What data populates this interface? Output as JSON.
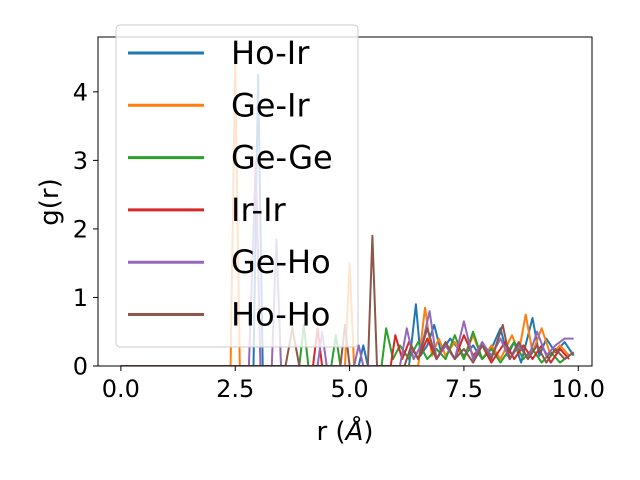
{
  "chart_data": {
    "type": "line",
    "title": "",
    "xlabel": "r (",
    "xlabel_unit": "Å",
    "xlabel_close": ")",
    "ylabel": "g(r)",
    "xlim": [
      -0.5,
      10.3
    ],
    "ylim": [
      0,
      4.8
    ],
    "xticks": [
      0.0,
      2.5,
      5.0,
      7.5,
      10.0
    ],
    "xtick_labels": [
      "0.0",
      "2.5",
      "5.0",
      "7.5",
      "10.0"
    ],
    "yticks": [
      0,
      1,
      2,
      3,
      4
    ],
    "ytick_labels": [
      "0",
      "1",
      "2",
      "3",
      "4"
    ],
    "grid": false,
    "legend_position": "top-left",
    "series": [
      {
        "name": "Ho-Ir",
        "color": "#1f77b4",
        "points": [
          [
            0,
            0
          ],
          [
            2.9,
            0
          ],
          [
            3.0,
            4.25
          ],
          [
            3.1,
            0
          ],
          [
            5.2,
            0
          ],
          [
            5.3,
            0.3
          ],
          [
            5.4,
            0
          ],
          [
            6.3,
            0
          ],
          [
            6.45,
            0.9
          ],
          [
            6.55,
            0.15
          ],
          [
            6.7,
            0.3
          ],
          [
            6.85,
            0.6
          ],
          [
            7.0,
            0.2
          ],
          [
            7.2,
            0.4
          ],
          [
            7.5,
            0.15
          ],
          [
            7.7,
            0.3
          ],
          [
            7.9,
            0.1
          ],
          [
            8.1,
            0.25
          ],
          [
            8.3,
            0.55
          ],
          [
            8.45,
            0.15
          ],
          [
            8.6,
            0.35
          ],
          [
            8.75,
            0.05
          ],
          [
            9.0,
            0.7
          ],
          [
            9.15,
            0.15
          ],
          [
            9.3,
            0.4
          ],
          [
            9.5,
            0.2
          ],
          [
            9.7,
            0.35
          ],
          [
            9.9,
            0.15
          ]
        ]
      },
      {
        "name": "Ge-Ir",
        "color": "#ff7f0e",
        "points": [
          [
            0,
            0
          ],
          [
            2.4,
            0
          ],
          [
            2.5,
            4.4
          ],
          [
            2.6,
            0
          ],
          [
            4.9,
            0
          ],
          [
            5.0,
            1.5
          ],
          [
            5.1,
            0
          ],
          [
            6.5,
            0
          ],
          [
            6.65,
            0.85
          ],
          [
            6.8,
            0.15
          ],
          [
            6.95,
            0.4
          ],
          [
            7.1,
            0.15
          ],
          [
            7.3,
            0.35
          ],
          [
            7.5,
            0.1
          ],
          [
            7.7,
            0.45
          ],
          [
            7.9,
            0.1
          ],
          [
            8.1,
            0.3
          ],
          [
            8.3,
            0.1
          ],
          [
            8.55,
            0.45
          ],
          [
            8.7,
            0.2
          ],
          [
            8.85,
            0.75
          ],
          [
            9.0,
            0.2
          ],
          [
            9.2,
            0.55
          ],
          [
            9.4,
            0.15
          ],
          [
            9.6,
            0.3
          ],
          [
            9.8,
            0.15
          ],
          [
            9.9,
            0.2
          ]
        ]
      },
      {
        "name": "Ge-Ge",
        "color": "#2ca02c",
        "points": [
          [
            0,
            0
          ],
          [
            3.9,
            0
          ],
          [
            4.0,
            0.6
          ],
          [
            4.1,
            0
          ],
          [
            4.6,
            0
          ],
          [
            4.7,
            0.45
          ],
          [
            4.8,
            0
          ],
          [
            5.7,
            0
          ],
          [
            5.8,
            0.55
          ],
          [
            5.95,
            0.1
          ],
          [
            6.1,
            0.3
          ],
          [
            6.3,
            0.1
          ],
          [
            6.5,
            0.35
          ],
          [
            6.7,
            0.1
          ],
          [
            6.9,
            0.25
          ],
          [
            7.1,
            0.1
          ],
          [
            7.3,
            0.45
          ],
          [
            7.5,
            0.1
          ],
          [
            7.7,
            0.5
          ],
          [
            7.9,
            0.1
          ],
          [
            8.1,
            0.25
          ],
          [
            8.3,
            0.05
          ],
          [
            8.6,
            0.35
          ],
          [
            8.8,
            0.1
          ],
          [
            9.0,
            0.25
          ],
          [
            9.2,
            0.05
          ],
          [
            9.4,
            0.2
          ],
          [
            9.6,
            0.05
          ],
          [
            9.8,
            0.15
          ]
        ]
      },
      {
        "name": "Ir-Ir",
        "color": "#d62728",
        "points": [
          [
            0,
            0
          ],
          [
            4.2,
            0
          ],
          [
            4.3,
            0.55
          ],
          [
            4.4,
            0
          ],
          [
            5.9,
            0
          ],
          [
            6.0,
            0.45
          ],
          [
            6.15,
            0.1
          ],
          [
            6.3,
            0.35
          ],
          [
            6.5,
            0.1
          ],
          [
            6.7,
            0.4
          ],
          [
            6.9,
            0.1
          ],
          [
            7.1,
            0.3
          ],
          [
            7.3,
            0.1
          ],
          [
            7.5,
            0.45
          ],
          [
            7.7,
            0.15
          ],
          [
            7.9,
            0.3
          ],
          [
            8.1,
            0.05
          ],
          [
            8.4,
            0.35
          ],
          [
            8.6,
            0.1
          ],
          [
            8.8,
            0.3
          ],
          [
            9.0,
            0.1
          ],
          [
            9.2,
            0.3
          ],
          [
            9.4,
            0.05
          ],
          [
            9.6,
            0.25
          ],
          [
            9.8,
            0.1
          ]
        ]
      },
      {
        "name": "Ge-Ho",
        "color": "#9467bd",
        "points": [
          [
            0,
            0
          ],
          [
            2.8,
            0
          ],
          [
            2.95,
            3.0
          ],
          [
            3.05,
            0
          ],
          [
            3.3,
            0
          ],
          [
            3.4,
            1.85
          ],
          [
            3.5,
            0
          ],
          [
            4.3,
            0
          ],
          [
            4.4,
            0.5
          ],
          [
            4.5,
            0
          ],
          [
            5.1,
            0
          ],
          [
            5.2,
            0.3
          ],
          [
            5.3,
            0
          ],
          [
            6.1,
            0
          ],
          [
            6.25,
            0.55
          ],
          [
            6.4,
            0.1
          ],
          [
            6.6,
            0.35
          ],
          [
            6.75,
            0.8
          ],
          [
            6.9,
            0.1
          ],
          [
            7.1,
            0.3
          ],
          [
            7.3,
            0.1
          ],
          [
            7.5,
            0.65
          ],
          [
            7.7,
            0.1
          ],
          [
            7.9,
            0.35
          ],
          [
            8.1,
            0.15
          ],
          [
            8.3,
            0.4
          ],
          [
            8.5,
            0.1
          ],
          [
            8.7,
            0.3
          ],
          [
            8.9,
            0.1
          ],
          [
            9.1,
            0.5
          ],
          [
            9.3,
            0.15
          ],
          [
            9.5,
            0.3
          ],
          [
            9.7,
            0.4
          ],
          [
            9.9,
            0.4
          ]
        ]
      },
      {
        "name": "Ho-Ho",
        "color": "#8c564b",
        "points": [
          [
            0,
            0
          ],
          [
            3.6,
            0
          ],
          [
            3.75,
            0.55
          ],
          [
            3.9,
            0
          ],
          [
            4.8,
            0
          ],
          [
            4.9,
            0.6
          ],
          [
            5.0,
            0
          ],
          [
            5.4,
            0
          ],
          [
            5.5,
            1.9
          ],
          [
            5.6,
            0
          ],
          [
            6.2,
            0
          ],
          [
            6.35,
            0.3
          ],
          [
            6.5,
            0.1
          ],
          [
            6.7,
            0.55
          ],
          [
            6.9,
            0.1
          ],
          [
            7.1,
            0.35
          ],
          [
            7.3,
            0.1
          ],
          [
            7.5,
            0.25
          ],
          [
            7.7,
            0.05
          ],
          [
            7.9,
            0.3
          ],
          [
            8.1,
            0.1
          ],
          [
            8.35,
            0.6
          ],
          [
            8.5,
            0.1
          ],
          [
            8.7,
            0.35
          ],
          [
            8.9,
            0.1
          ],
          [
            9.1,
            0.3
          ],
          [
            9.3,
            0.05
          ],
          [
            9.5,
            0.25
          ],
          [
            9.7,
            0.1
          ],
          [
            9.9,
            0.2
          ]
        ]
      }
    ]
  }
}
